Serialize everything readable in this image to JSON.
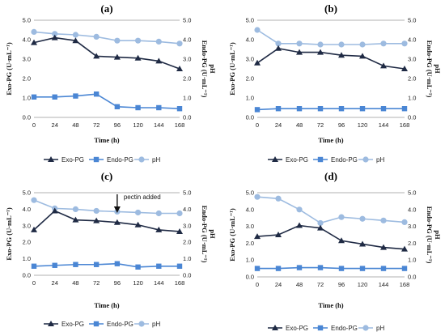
{
  "chart_data": [
    {
      "panel": "(a)",
      "type": "line",
      "x": [
        0,
        24,
        48,
        72,
        96,
        120,
        144,
        168
      ],
      "xlabel": "Time (h)",
      "ylabel_left": "Exo-PG (U·mL⁻¹)",
      "ylabel_right": "Endo-PG (U·mL⁻¹)",
      "ylabel_right2": "pH",
      "ylim": [
        0,
        5
      ],
      "yticks": [
        "0.0",
        "1.0",
        "2.0",
        "3.0",
        "4.0",
        "5.0"
      ],
      "series": [
        {
          "name": "Exo-PG",
          "values": [
            3.85,
            4.1,
            3.95,
            3.15,
            3.1,
            3.05,
            2.9,
            2.5
          ],
          "color": "#1f2a44",
          "marker": "triangle"
        },
        {
          "name": "Endo-PG",
          "values": [
            1.05,
            1.05,
            1.1,
            1.2,
            0.55,
            0.5,
            0.5,
            0.45
          ],
          "color": "#4a86d4",
          "marker": "square"
        },
        {
          "name": "pH",
          "values": [
            4.4,
            4.3,
            4.25,
            4.15,
            3.95,
            3.95,
            3.9,
            3.8
          ],
          "color": "#9dbbe0",
          "marker": "circle"
        }
      ],
      "legend": [
        "Exo-PG",
        "Endo-PG",
        "pH"
      ],
      "annotation": ""
    },
    {
      "panel": "(b)",
      "type": "line",
      "x": [
        0,
        24,
        48,
        72,
        96,
        120,
        144,
        168
      ],
      "xlabel": "Time (h)",
      "ylabel_left": "Exo-PG (U·mL⁻¹)",
      "ylabel_right": "Endo-PG (U·mL⁻¹)",
      "ylabel_right2": "pH",
      "ylim": [
        0,
        5
      ],
      "yticks": [
        "0.0",
        "1.0",
        "2.0",
        "3.0",
        "4.0",
        "5.0"
      ],
      "series": [
        {
          "name": "Exo-PG",
          "values": [
            2.8,
            3.55,
            3.35,
            3.35,
            3.2,
            3.15,
            2.65,
            2.5
          ],
          "color": "#1f2a44",
          "marker": "triangle"
        },
        {
          "name": "Endo-PG",
          "values": [
            0.4,
            0.45,
            0.45,
            0.45,
            0.45,
            0.45,
            0.45,
            0.45
          ],
          "color": "#4a86d4",
          "marker": "square"
        },
        {
          "name": "pH",
          "values": [
            4.5,
            3.8,
            3.8,
            3.75,
            3.75,
            3.75,
            3.8,
            3.8
          ],
          "color": "#9dbbe0",
          "marker": "circle"
        }
      ],
      "legend": [
        "Exo-PG",
        "Endo-PG",
        "pH"
      ],
      "annotation": ""
    },
    {
      "panel": "(c)",
      "type": "line",
      "x": [
        0,
        24,
        48,
        72,
        96,
        120,
        144,
        168
      ],
      "xlabel": "Time (h)",
      "ylabel_left": "Exo-PG (U·mL⁻¹)",
      "ylabel_right": "Endo-PG (U·mL⁻¹)",
      "ylabel_right2": "pH",
      "ylim": [
        0,
        5
      ],
      "yticks": [
        "0.0",
        "1.0",
        "2.0",
        "3.0",
        "4.0",
        "5.0"
      ],
      "series": [
        {
          "name": "Exo-PG",
          "values": [
            2.75,
            3.9,
            3.35,
            3.3,
            3.2,
            3.05,
            2.75,
            2.65
          ],
          "color": "#1f2a44",
          "marker": "triangle"
        },
        {
          "name": "Endo-PG",
          "values": [
            0.55,
            0.6,
            0.65,
            0.65,
            0.7,
            0.5,
            0.55,
            0.55
          ],
          "color": "#4a86d4",
          "marker": "square"
        },
        {
          "name": "pH",
          "values": [
            4.55,
            4.05,
            4.0,
            3.9,
            3.85,
            3.8,
            3.75,
            3.75
          ],
          "color": "#9dbbe0",
          "marker": "circle"
        }
      ],
      "legend": [
        "Exo-PG",
        "Endo-PG",
        "pH"
      ],
      "annotation": "pectin added",
      "annotation_x": 96
    },
    {
      "panel": "(d)",
      "type": "line",
      "x": [
        0,
        24,
        48,
        72,
        96,
        120,
        144,
        168
      ],
      "xlabel": "Time (h)",
      "ylabel_left": "Exo-PG (U·mL⁻¹)",
      "ylabel_right": "Endo-PG (U·mL⁻¹)",
      "ylabel_right2": "pH",
      "ylim": [
        0,
        5
      ],
      "yticks": [
        "0.0",
        "1.0",
        "2.0",
        "3.0",
        "4.0",
        "5.0"
      ],
      "series": [
        {
          "name": "Exo-PG",
          "values": [
            2.4,
            2.5,
            3.05,
            2.9,
            2.15,
            1.95,
            1.75,
            1.65
          ],
          "color": "#1f2a44",
          "marker": "triangle"
        },
        {
          "name": "Endo-PG",
          "values": [
            0.5,
            0.5,
            0.55,
            0.55,
            0.5,
            0.5,
            0.5,
            0.5
          ],
          "color": "#4a86d4",
          "marker": "square"
        },
        {
          "name": "pH",
          "values": [
            4.75,
            4.65,
            4.0,
            3.2,
            3.55,
            3.45,
            3.35,
            3.25
          ],
          "color": "#9dbbe0",
          "marker": "circle"
        }
      ],
      "legend": [
        "Exo-PG",
        "Endo-PG",
        "pH"
      ],
      "annotation": ""
    }
  ]
}
